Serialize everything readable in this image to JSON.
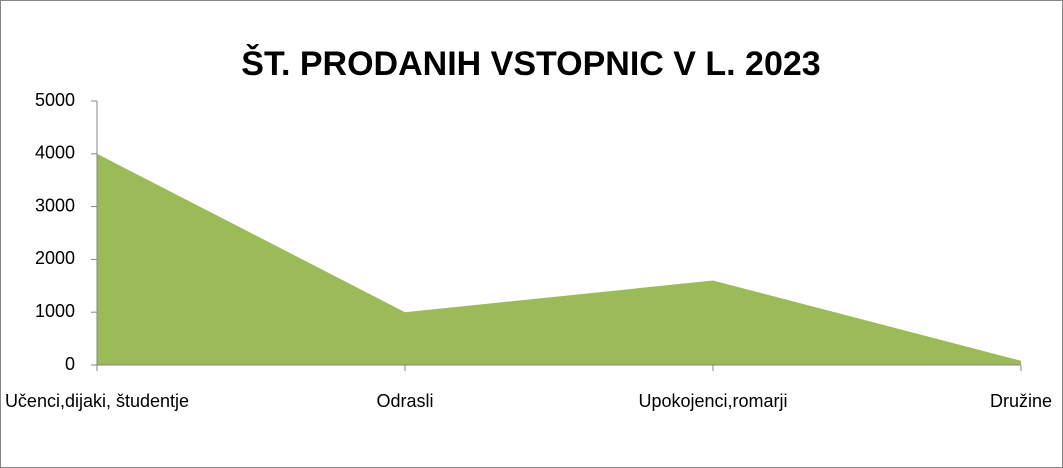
{
  "chart_data": {
    "type": "area",
    "title": "ŠT. PRODANIH VSTOPNIC V L. 2023",
    "categories": [
      "Učenci,dijaki, študentje",
      "Odrasli",
      "Upokojenci,romarji",
      "Družine"
    ],
    "values": [
      4000,
      1000,
      1600,
      80
    ],
    "color": "#9bbb59",
    "ylim": [
      0,
      5000
    ],
    "yticks": [
      0,
      1000,
      2000,
      3000,
      4000,
      5000
    ],
    "grid": false
  }
}
